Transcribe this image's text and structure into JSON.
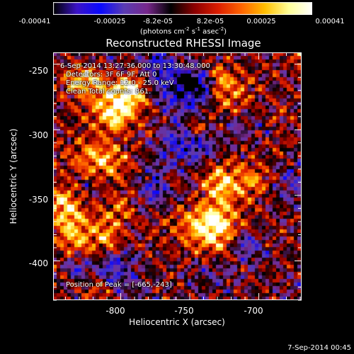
{
  "chart_data": {
    "type": "heatmap",
    "title": "Reconstructed RHESSI Image",
    "xlabel": "Heliocentric X (arcsec)",
    "ylabel": "Heliocentric Y (arcsec)",
    "xlim": [
      -849,
      -669
    ],
    "ylim": [
      -430,
      -241
    ],
    "x_ticks": [
      "-800",
      "-750",
      "-700"
    ],
    "x_tick_values": [
      -800,
      -750,
      -700
    ],
    "y_ticks": [
      "-250",
      "-300",
      "-350",
      "-400"
    ],
    "y_tick_values": [
      -250,
      -300,
      -350,
      -400
    ],
    "colorbar": {
      "tick_labels": [
        "-0.00041",
        "-0.00025",
        "-8.2e-05",
        "8.2e-05",
        "0.00025",
        "0.00041"
      ],
      "range": [
        -0.00041,
        0.00041
      ],
      "units_text": "(photons cm",
      "units_exp1": "-2",
      "units_mid1": " s",
      "units_exp2": "-1",
      "units_mid2": " asec",
      "units_exp3": "-2",
      "units_end": ")"
    },
    "annotations": {
      "time_range": "6-Sep-2014 13:27:36.000 to 13:30:48.000",
      "detectors": "Detectors: 3F 6F 9F, Att 0",
      "energy_range": "Energy Range: 12.0 - 25.0 keV",
      "method": "Clean    Total counts: 861.",
      "peak": "Position of Peak = [-665,-243]"
    },
    "peak_position": [
      -665,
      -243
    ],
    "colormap": [
      "#000000",
      "#3c14c8",
      "#0a0aff",
      "#5a3cb4",
      "#78288c",
      "#000000",
      "#8c0000",
      "#dc1e00",
      "#ff6400",
      "#ffbe00",
      "#ffff96",
      "#ffffff"
    ]
  },
  "footer": {
    "date": "7-Sep-2014 00:45"
  }
}
